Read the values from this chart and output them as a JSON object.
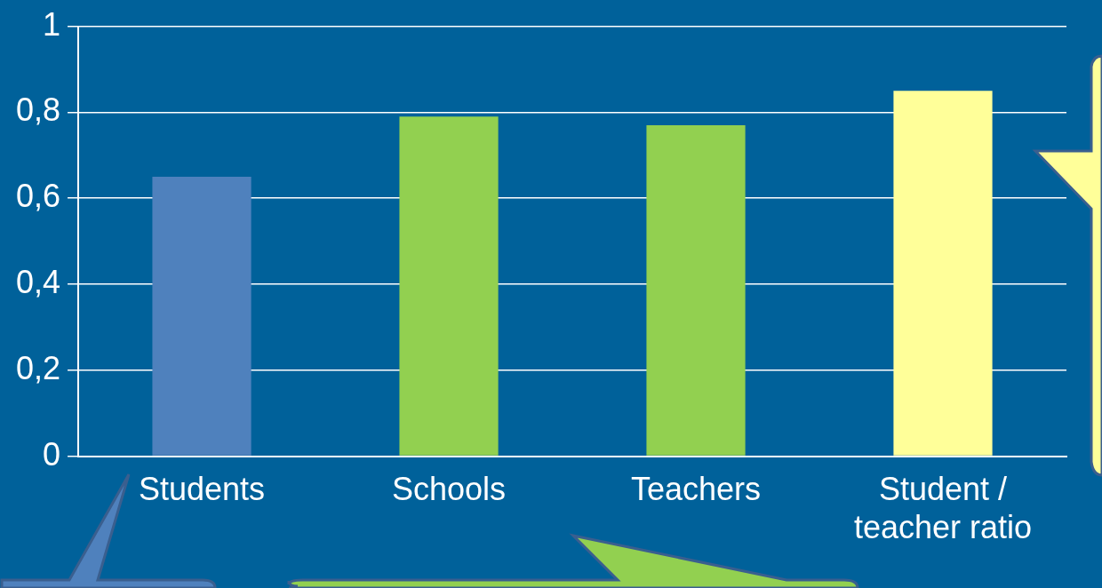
{
  "chart_data": {
    "type": "bar",
    "categories": [
      "Students",
      "Schools",
      "Teachers",
      "Student / teacher ratio"
    ],
    "values": [
      0.65,
      0.79,
      0.77,
      0.85
    ],
    "colors": [
      "#4f81bd",
      "#92d050",
      "#92d050",
      "#ffff99"
    ],
    "ylim": [
      0,
      1
    ],
    "yticks": [
      0,
      {
        "value": 0.2,
        "label": "0,2"
      },
      {
        "value": 0.4,
        "label": "0,4"
      },
      {
        "value": 0.6,
        "label": "0,6"
      },
      {
        "value": 0.8,
        "label": "0,8"
      },
      1
    ],
    "grid": "y",
    "legend": false
  }
}
